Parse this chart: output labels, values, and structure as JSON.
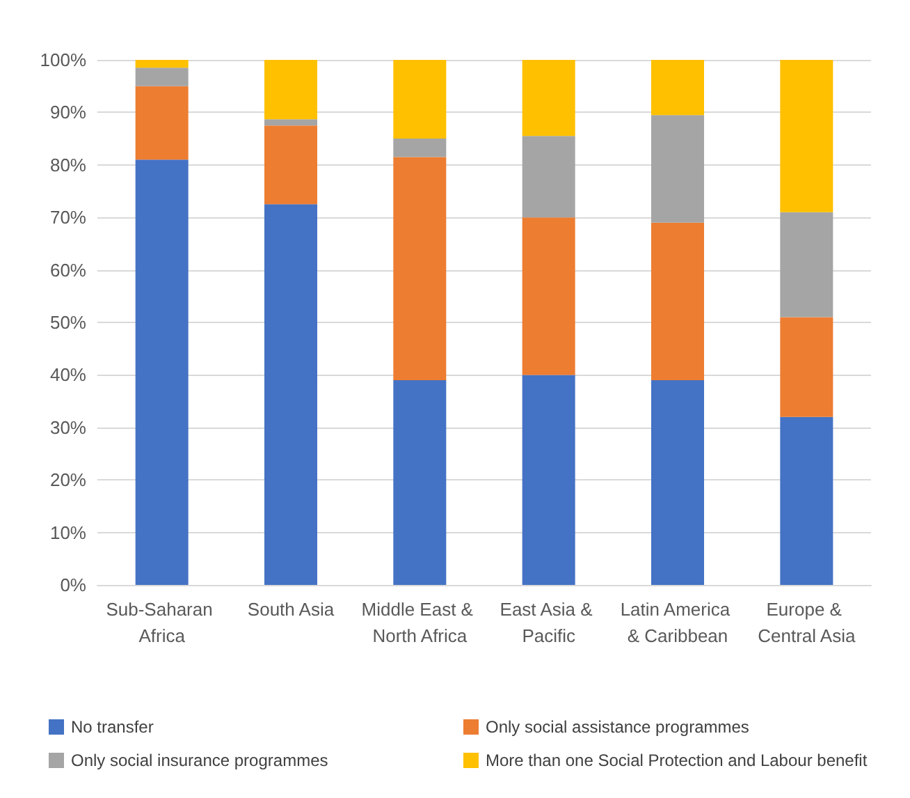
{
  "chart_data": {
    "type": "bar",
    "stacked": true,
    "categories": [
      "Sub-Saharan Africa",
      "South Asia",
      "Middle East & North Africa",
      "East Asia & Pacific",
      "Latin America & Caribbean",
      "Europe & Central Asia"
    ],
    "series": [
      {
        "name": "No transfer",
        "color": "#4472c4",
        "values": [
          81,
          72.5,
          39,
          40,
          39,
          32
        ]
      },
      {
        "name": "Only social assistance programmes",
        "color": "#ed7d31",
        "values": [
          14,
          15,
          42.5,
          30,
          30,
          19
        ]
      },
      {
        "name": "Only social insurance programmes",
        "color": "#a5a5a5",
        "values": [
          3.5,
          1.2,
          3.5,
          15.5,
          20.5,
          20
        ]
      },
      {
        "name": "More than one Social Protection and Labour benefit",
        "color": "#ffc000",
        "values": [
          1.5,
          11.3,
          15,
          14.5,
          10.5,
          29
        ]
      }
    ],
    "ylim": [
      0,
      100
    ],
    "yticks": [
      {
        "value": 0,
        "label": "0%"
      },
      {
        "value": 10,
        "label": "10%"
      },
      {
        "value": 20,
        "label": "20%"
      },
      {
        "value": 30,
        "label": "30%"
      },
      {
        "value": 40,
        "label": "40%"
      },
      {
        "value": 50,
        "label": "50%"
      },
      {
        "value": 60,
        "label": "60%"
      },
      {
        "value": 70,
        "label": "70%"
      },
      {
        "value": 80,
        "label": "80%"
      },
      {
        "value": 90,
        "label": "90%"
      },
      {
        "value": 100,
        "label": "100%"
      }
    ],
    "grid": "y",
    "legend": "bottom"
  }
}
